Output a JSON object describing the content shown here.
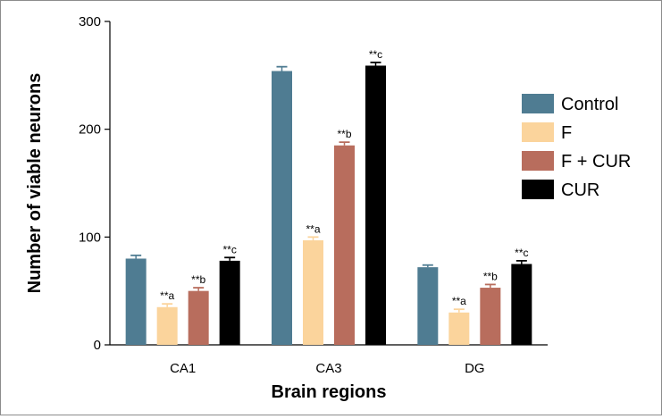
{
  "chart_data": {
    "type": "bar",
    "title": "",
    "xlabel": "Brain regions",
    "ylabel": "Number of viable neurons",
    "ylim": [
      0,
      300
    ],
    "yticks": [
      0,
      100,
      200,
      300
    ],
    "categories": [
      "CA1",
      "CA3",
      "DG"
    ],
    "series": [
      {
        "name": "Control",
        "color": "#4f7c92",
        "values": [
          80,
          254,
          72
        ],
        "errors": [
          3,
          4,
          2
        ],
        "annotations": [
          "",
          "",
          ""
        ]
      },
      {
        "name": "F",
        "color": "#fbd49c",
        "values": [
          35,
          97,
          30
        ],
        "errors": [
          3,
          3,
          3
        ],
        "annotations": [
          "**a",
          "**a",
          "**a"
        ]
      },
      {
        "name": "F + CUR",
        "color": "#b86d5d",
        "values": [
          50,
          185,
          53
        ],
        "errors": [
          3,
          3,
          3
        ],
        "annotations": [
          "**b",
          "**b",
          "**b"
        ]
      },
      {
        "name": "CUR",
        "color": "#000000",
        "values": [
          78,
          259,
          75
        ],
        "errors": [
          3,
          3,
          3
        ],
        "annotations": [
          "**c",
          "**c",
          "**c"
        ]
      }
    ],
    "legend_position": "right",
    "grid": false
  }
}
